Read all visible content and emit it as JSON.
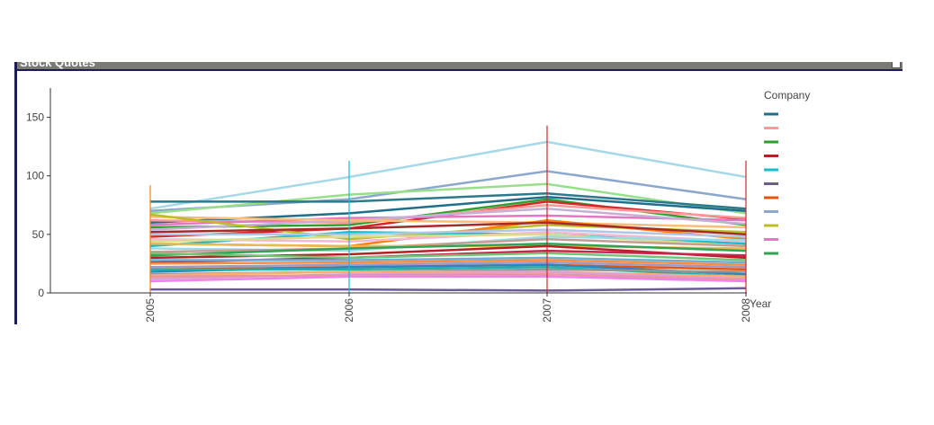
{
  "window": {
    "title": "Stock Quotes"
  },
  "chart_data": {
    "type": "line",
    "title": "",
    "xlabel": "Year",
    "ylabel": "",
    "x": [
      "2005",
      "2006",
      "2007",
      "2008"
    ],
    "ylim": [
      0,
      175
    ],
    "yticks": [
      "0",
      "50",
      "100",
      "150"
    ],
    "ytick_values": [
      0,
      50,
      100,
      150
    ],
    "grid": false,
    "legend": {
      "title": "Company",
      "placement": "right"
    },
    "series": [
      {
        "color": "#a6d8e6",
        "values": [
          72,
          99,
          129,
          99
        ]
      },
      {
        "color": "#8ba7cc",
        "values": [
          70,
          80,
          104,
          80
        ]
      },
      {
        "color": "#98df8a",
        "values": [
          68,
          84,
          93,
          68
        ]
      },
      {
        "color": "#2b7a8c",
        "values": [
          78,
          78,
          85,
          72
        ]
      },
      {
        "color": "#1f6f8b",
        "values": [
          60,
          68,
          82,
          70
        ]
      },
      {
        "color": "#2ca02c",
        "values": [
          56,
          58,
          80,
          58
        ]
      },
      {
        "color": "#d62728",
        "values": [
          48,
          55,
          78,
          63
        ]
      },
      {
        "color": "#ff9896",
        "values": [
          62,
          60,
          75,
          64
        ]
      },
      {
        "color": "#e377c2",
        "values": [
          58,
          64,
          66,
          62
        ]
      },
      {
        "color": "#c5b0d5",
        "values": [
          54,
          62,
          72,
          59
        ]
      },
      {
        "color": "#ffbb78",
        "values": [
          65,
          62,
          60,
          56
        ]
      },
      {
        "color": "#bcbd22",
        "values": [
          67,
          46,
          58,
          52
        ]
      },
      {
        "color": "#ff7f0e",
        "values": [
          42,
          40,
          62,
          46
        ]
      },
      {
        "color": "#a52a2a",
        "values": [
          52,
          55,
          60,
          50
        ]
      },
      {
        "color": "#17becf",
        "values": [
          40,
          52,
          50,
          42
        ]
      },
      {
        "color": "#aec7e8",
        "values": [
          50,
          50,
          54,
          48
        ]
      },
      {
        "color": "#f7b6d2",
        "values": [
          46,
          44,
          52,
          44
        ]
      },
      {
        "color": "#dbdb8d",
        "values": [
          44,
          48,
          50,
          40
        ]
      },
      {
        "color": "#9edae5",
        "values": [
          38,
          36,
          48,
          45
        ]
      },
      {
        "color": "#c49c94",
        "values": [
          35,
          38,
          46,
          40
        ]
      },
      {
        "color": "#e7ba52",
        "values": [
          42,
          40,
          40,
          38
        ]
      },
      {
        "color": "#31a354",
        "values": [
          32,
          38,
          42,
          36
        ]
      },
      {
        "color": "#b22222",
        "values": [
          30,
          33,
          40,
          30
        ]
      },
      {
        "color": "#c7254e",
        "values": [
          26,
          30,
          36,
          32
        ]
      },
      {
        "color": "#74c476",
        "values": [
          34,
          30,
          34,
          28
        ]
      },
      {
        "color": "#6baed6",
        "values": [
          28,
          28,
          30,
          26
        ]
      },
      {
        "color": "#fd8d3c",
        "values": [
          25,
          26,
          28,
          24
        ]
      },
      {
        "color": "#9e9ac8",
        "values": [
          22,
          24,
          26,
          22
        ]
      },
      {
        "color": "#e6550d",
        "values": [
          20,
          22,
          24,
          20
        ]
      },
      {
        "color": "#3182bd",
        "values": [
          18,
          22,
          24,
          16
        ]
      },
      {
        "color": "#20b2aa",
        "values": [
          20,
          20,
          22,
          14
        ]
      },
      {
        "color": "#969696",
        "values": [
          16,
          18,
          20,
          18
        ]
      },
      {
        "color": "#fdae6b",
        "values": [
          15,
          18,
          18,
          14
        ]
      },
      {
        "color": "#de9ed6",
        "values": [
          12,
          16,
          18,
          12
        ]
      },
      {
        "color": "#e7969c",
        "values": [
          14,
          15,
          16,
          11
        ]
      },
      {
        "color": "#ee82ee",
        "values": [
          10,
          14,
          14,
          10
        ]
      },
      {
        "color": "#6b5b95",
        "values": [
          3,
          3,
          2,
          4
        ]
      }
    ],
    "legend_colors": [
      "#1f6f8b",
      "#ff9896",
      "#2ca02c",
      "#b22222",
      "#17becf",
      "#6b5b95",
      "#e6550d",
      "#8ba7cc",
      "#bcbd22",
      "#e377c2",
      "#31a354"
    ]
  }
}
